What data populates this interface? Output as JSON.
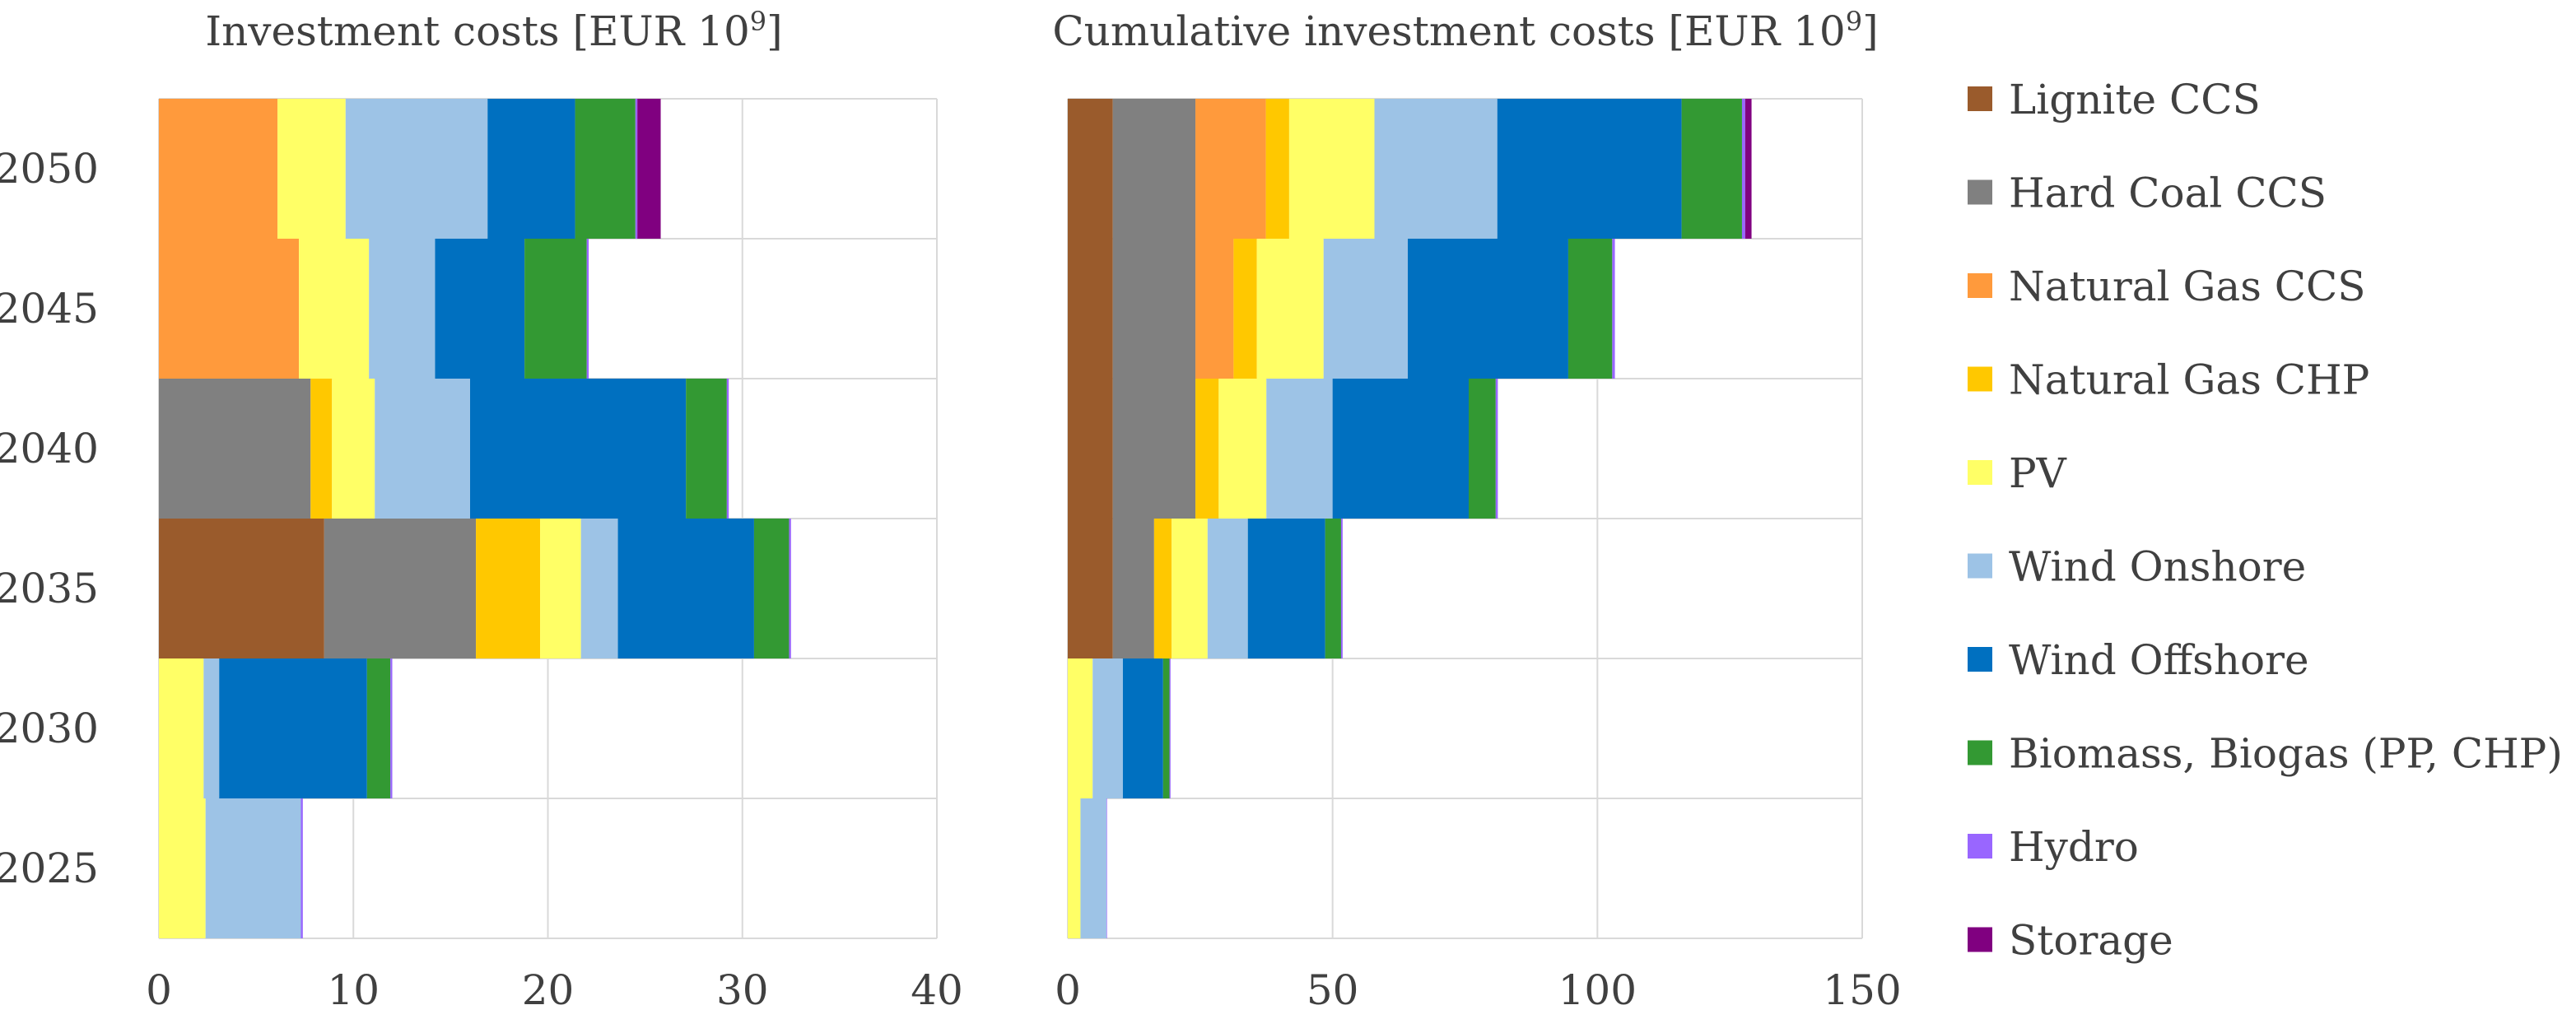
{
  "charts": [
    {
      "type": "bar",
      "orientation": "horizontal",
      "stacked": true,
      "title_text": "Investment costs [EUR 10",
      "title_sup": "9",
      "title_end": "]",
      "categories": [
        "2050",
        "2045",
        "2040",
        "2035",
        "2030",
        "2025"
      ],
      "xlim": [
        0,
        40
      ],
      "xticks": [
        0,
        10,
        20,
        30,
        40
      ],
      "xtick_labels": [
        "0",
        "10",
        "20",
        "30",
        "40"
      ],
      "grid": true,
      "series": [
        {
          "name": "Lignite CCS",
          "values": [
            0,
            0,
            0,
            8.5,
            0,
            0
          ]
        },
        {
          "name": "Hard Coal CCS",
          "values": [
            0,
            0,
            7.8,
            7.8,
            0,
            0
          ]
        },
        {
          "name": "Natural Gas CCS",
          "values": [
            6.1,
            7.2,
            0,
            0,
            0,
            0
          ]
        },
        {
          "name": "Natural Gas CHP",
          "values": [
            0,
            0,
            1.1,
            3.3,
            0,
            0
          ]
        },
        {
          "name": "PV",
          "values": [
            3.5,
            3.6,
            2.2,
            2.1,
            2.3,
            2.4
          ]
        },
        {
          "name": "Wind Onshore",
          "values": [
            7.3,
            3.4,
            4.9,
            1.9,
            0.8,
            4.9
          ]
        },
        {
          "name": "Wind Offshore",
          "values": [
            4.5,
            4.6,
            11.1,
            7.0,
            7.6,
            0
          ]
        },
        {
          "name": "Biomass, Biogas (PP, CHP)",
          "values": [
            3.1,
            3.2,
            2.1,
            1.8,
            1.2,
            0
          ]
        },
        {
          "name": "Hydro",
          "values": [
            0.1,
            0.1,
            0.1,
            0.1,
            0.1,
            0.1
          ]
        },
        {
          "name": "Storage",
          "values": [
            1.2,
            0,
            0,
            0,
            0,
            0
          ]
        }
      ]
    },
    {
      "type": "bar",
      "orientation": "horizontal",
      "stacked": true,
      "title_text": "Cumulative investment costs [EUR 10",
      "title_sup": "9",
      "title_end": "]",
      "categories": [
        "2050",
        "2045",
        "2040",
        "2035",
        "2030",
        "2025"
      ],
      "xlim": [
        0,
        150
      ],
      "xticks": [
        0,
        50,
        100,
        150
      ],
      "xtick_labels": [
        "0",
        "50",
        "100",
        "150"
      ],
      "grid": true,
      "series": [
        {
          "name": "Lignite CCS",
          "values": [
            8.5,
            8.5,
            8.5,
            8.5,
            0,
            0
          ]
        },
        {
          "name": "Hard Coal CCS",
          "values": [
            15.6,
            15.6,
            15.6,
            7.8,
            0,
            0
          ]
        },
        {
          "name": "Natural Gas CCS",
          "values": [
            13.3,
            7.2,
            0,
            0,
            0,
            0
          ]
        },
        {
          "name": "Natural Gas CHP",
          "values": [
            4.4,
            4.4,
            4.4,
            3.3,
            0,
            0
          ]
        },
        {
          "name": "PV",
          "values": [
            16.1,
            12.6,
            9.0,
            6.8,
            4.7,
            2.4
          ]
        },
        {
          "name": "Wind Onshore",
          "values": [
            23.2,
            15.9,
            12.5,
            7.6,
            5.7,
            4.9
          ]
        },
        {
          "name": "Wind Offshore",
          "values": [
            34.8,
            30.3,
            25.7,
            14.6,
            7.6,
            0
          ]
        },
        {
          "name": "Biomass, Biogas (PP, CHP)",
          "values": [
            11.4,
            8.3,
            5.1,
            3.0,
            1.2,
            0
          ]
        },
        {
          "name": "Hydro",
          "values": [
            0.6,
            0.5,
            0.4,
            0.3,
            0.2,
            0.1
          ]
        },
        {
          "name": "Storage",
          "values": [
            1.2,
            0,
            0,
            0,
            0,
            0
          ]
        }
      ]
    }
  ],
  "legend": {
    "placement": "right",
    "entries": [
      "Lignite CCS",
      "Hard Coal CCS",
      "Natural Gas CCS",
      "Natural Gas CHP",
      "PV",
      "Wind Onshore",
      "Wind Offshore",
      "Biomass, Biogas (PP, CHP)",
      "Hydro",
      "Storage"
    ]
  },
  "colors": {
    "Lignite CCS": "#9a5b2c",
    "Hard Coal CCS": "#808080",
    "Natural Gas CCS": "#ff9a3c",
    "Natural Gas CHP": "#ffc800",
    "PV": "#ffff66",
    "Wind Onshore": "#9dc3e6",
    "Wind Offshore": "#0070c0",
    "Biomass, Biogas (PP, CHP)": "#339933",
    "Hydro": "#9966ff",
    "Storage": "#800080",
    "grid": "#d9d9d9",
    "text": "#404040"
  }
}
